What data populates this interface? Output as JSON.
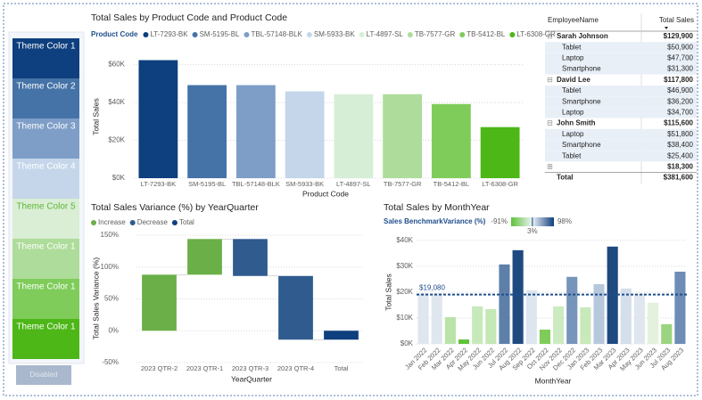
{
  "sidebar": {
    "buttons": [
      "Theme Color 1",
      "Theme Color 2",
      "Theme Color 3",
      "Theme Color 4",
      "Theme Color 5",
      "Theme Color 1",
      "Theme Color 1",
      "Theme Color 1"
    ],
    "colors": [
      "#0e3f7e",
      "#4573a8",
      "#7e9ec8",
      "#c5d6ea",
      "#d9eed4",
      "#aedc9a",
      "#7fcc5a",
      "#4db717"
    ],
    "text_colors": [
      "#ffffff",
      "#ffffff",
      "#ffffff",
      "#ffffff",
      "#5fb53a",
      "#ffffff",
      "#ffffff",
      "#ffffff"
    ],
    "disabled": "Disabled"
  },
  "chart_data": [
    {
      "type": "bar",
      "title": "Total Sales by Product Code and Product Code",
      "legend_title": "Product Code",
      "x_label": "Product Code",
      "y_label": "Total Sales",
      "categories": [
        "LT-7293-BK",
        "SM-5195-BL",
        "TBL-57148-BLK",
        "SM-5933-BK",
        "LT-4897-SL",
        "TB-7577-GR",
        "TB-5412-BL",
        "LT-6308-GR"
      ],
      "values": [
        62400,
        49200,
        49200,
        45900,
        44400,
        44400,
        39200,
        27000
      ],
      "colors": [
        "#0e3f7e",
        "#4573a8",
        "#7e9ec8",
        "#c5d6ea",
        "#d6eed6",
        "#aedc9a",
        "#7fcc5a",
        "#4db717"
      ],
      "ylim": [
        0,
        65000
      ],
      "yticks": [
        {
          "value": 0,
          "label": "$0K"
        },
        {
          "value": 20000,
          "label": "$20K"
        },
        {
          "value": 40000,
          "label": "$40K"
        },
        {
          "value": 60000,
          "label": "$60K"
        }
      ],
      "grid": true
    },
    {
      "type": "waterfall",
      "title": "Total Sales Variance (%) by YearQuarter",
      "x_label": "YearQuarter",
      "y_label": "Total Sales Variance (%)",
      "legend": [
        {
          "name": "Increase",
          "color": "#6aaf48"
        },
        {
          "name": "Decrease",
          "color": "#2f5b8e"
        },
        {
          "name": "Total",
          "color": "#0e3f7e"
        }
      ],
      "categories": [
        "2023 QTR-2",
        "2023 QTR-1",
        "2023 QTR-3",
        "2023 QTR-4",
        "Total"
      ],
      "values": [
        88,
        56,
        -58,
        -100,
        -14
      ],
      "ylim": [
        -50,
        150
      ],
      "yticks": [
        {
          "value": -50,
          "label": "-50%"
        },
        {
          "value": 0,
          "label": "0%"
        },
        {
          "value": 50,
          "label": "50%"
        },
        {
          "value": 100,
          "label": "100%"
        },
        {
          "value": 150,
          "label": "150%"
        }
      ],
      "grid": true
    },
    {
      "type": "bar",
      "title": "Total Sales by MonthYear",
      "legend_title": "Sales BenchmarkVariance (%)",
      "x_label": "MonthYear",
      "y_label": "Total Sales",
      "color_scale": [
        {
          "value": -91,
          "label": "-91%",
          "color": "#5fc33a"
        },
        {
          "value": 3,
          "label": "3%",
          "color": "#eef2f7"
        },
        {
          "value": 98,
          "label": "98%",
          "color": "#0e3f7e"
        }
      ],
      "categories": [
        "Jan 2022",
        "Feb 2022",
        "Mar 2022",
        "Apr 2022",
        "May 2022",
        "Jun 2022",
        "Jul 2022",
        "Aug 2022",
        "Sep 2022",
        "Oct 2022",
        "Nov 2022",
        "Dec 2022",
        "Jan 2023",
        "Feb 2023",
        "Mar 2023",
        "Apr 2023",
        "May 2023",
        "Jun 2023",
        "Jul 2023",
        "Aug 2023"
      ],
      "values": [
        19500,
        19500,
        10300,
        1700,
        14500,
        13400,
        30700,
        36200,
        20700,
        5500,
        14500,
        25900,
        14100,
        23100,
        37600,
        21400,
        19300,
        15900,
        7600,
        27900
      ],
      "colors": [
        "#dfe6ee",
        "#dfe6ee",
        "#b9e3a8",
        "#5fc33a",
        "#c8e9bb",
        "#c3e7b5",
        "#5d80aa",
        "#1e4a80",
        "#dde5ef",
        "#7fcc5a",
        "#cdebc2",
        "#7795ba",
        "#c8e9bb",
        "#b7c8dc",
        "#1e4a80",
        "#d4dfeb",
        "#dfe6ee",
        "#e2f2dc",
        "#9bd47e",
        "#6d8db6"
      ],
      "reference": {
        "value": 19080,
        "label": "$19,080",
        "color": "#1f4e8c"
      },
      "ylim": [
        0,
        42000
      ],
      "yticks": [
        {
          "value": 0,
          "label": "$0K"
        },
        {
          "value": 10000,
          "label": "$10K"
        },
        {
          "value": 20000,
          "label": "$20K"
        },
        {
          "value": 30000,
          "label": "$30K"
        },
        {
          "value": 40000,
          "label": "$40K"
        }
      ],
      "grid": true
    }
  ],
  "table": {
    "columns": [
      "EmployeeName",
      "Total Sales"
    ],
    "groups": [
      {
        "name": "Sarah Johnson",
        "total": "$129,900",
        "items": [
          [
            "Tablet",
            "$50,900"
          ],
          [
            "Laptop",
            "$47,700"
          ],
          [
            "Smartphone",
            "$31,300"
          ]
        ]
      },
      {
        "name": "David Lee",
        "total": "$117,800",
        "items": [
          [
            "Tablet",
            "$46,900"
          ],
          [
            "Smartphone",
            "$36,200"
          ],
          [
            "Laptop",
            "$34,700"
          ]
        ]
      },
      {
        "name": "John Smith",
        "total": "$115,600",
        "items": [
          [
            "Laptop",
            "$51,800"
          ],
          [
            "Smartphone",
            "$38,400"
          ],
          [
            "Tablet",
            "$25,400"
          ]
        ]
      },
      {
        "name": null,
        "total": "$18,300",
        "items": []
      }
    ],
    "total_label": "Total",
    "total": "$381,600"
  }
}
